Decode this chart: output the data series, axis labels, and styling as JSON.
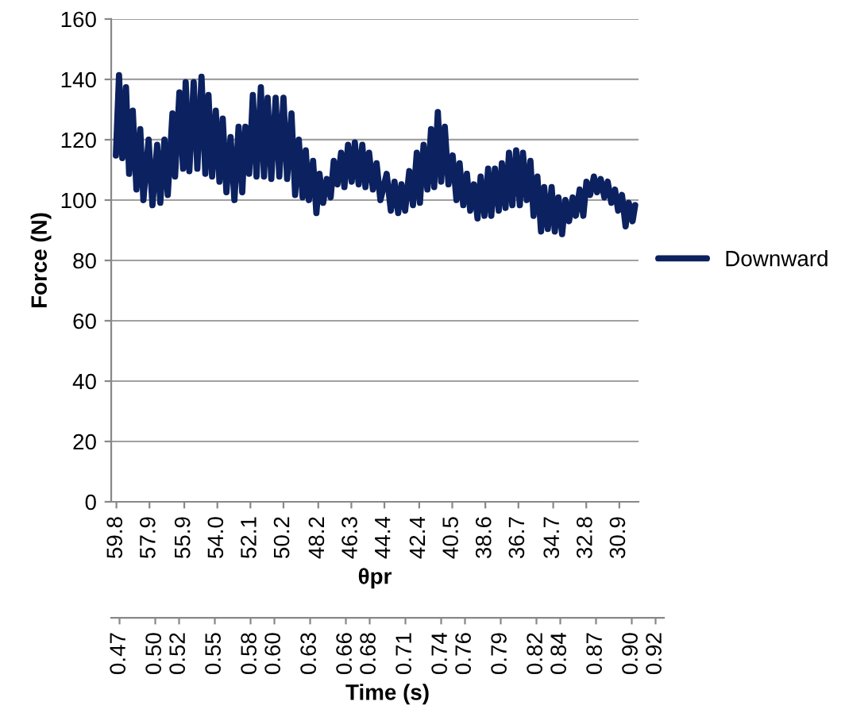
{
  "chart_data": {
    "type": "line",
    "xlabel": "θpr",
    "ylabel": "Force (N)",
    "x2label": "Time (s)",
    "xlim": [
      60.1,
      29.8
    ],
    "xticks": [
      59.8,
      57.9,
      55.9,
      {
        "value": 54.0,
        "label": "54.0"
      },
      52.1,
      50.2,
      48.2,
      46.3,
      44.4,
      42.4,
      40.5,
      38.6,
      36.7,
      34.7,
      32.8,
      30.9
    ],
    "x2lim": [
      0.463,
      0.927
    ],
    "x2ticks": [
      0.47,
      {
        "value": 0.5,
        "label": "0.50"
      },
      0.52,
      0.55,
      0.58,
      {
        "value": 0.6,
        "label": "0.60"
      },
      0.63,
      0.66,
      0.68,
      0.71,
      0.74,
      0.76,
      0.79,
      0.82,
      0.84,
      0.87,
      {
        "value": 0.9,
        "label": "0.90"
      },
      0.92
    ],
    "ylim": [
      0,
      160
    ],
    "yticks": [
      0,
      20,
      40,
      60,
      80,
      100,
      120,
      140,
      160
    ],
    "grid": "y",
    "legend": "right",
    "marker": "none",
    "line_style": "solid",
    "series": [
      {
        "name": "Downward",
        "color": "#0b2160",
        "x": [
          59.83,
          59.65,
          59.46,
          59.25,
          59.07,
          58.86,
          58.65,
          58.43,
          58.25,
          57.95,
          57.73,
          57.46,
          57.28,
          57.04,
          56.85,
          56.58,
          56.43,
          56.18,
          55.97,
          55.82,
          55.61,
          55.36,
          55.15,
          54.91,
          54.69,
          54.51,
          54.3,
          54.09,
          53.88,
          53.69,
          53.48,
          53.24,
          53.02,
          52.78,
          52.57,
          52.39,
          52.17,
          51.96,
          51.75,
          51.5,
          51.32,
          51.11,
          50.9,
          50.65,
          50.44,
          50.2,
          49.99,
          49.74,
          49.53,
          49.32,
          49.1,
          48.92,
          48.74,
          48.5,
          48.31,
          48.13,
          47.92,
          47.71,
          47.49,
          47.31,
          47.1,
          46.89,
          46.7,
          46.49,
          46.28,
          46.1,
          45.88,
          45.67,
          45.49,
          45.28,
          45.06,
          44.85,
          44.63,
          44.27,
          44.03,
          43.82,
          43.61,
          43.42,
          43.21,
          42.97,
          42.76,
          42.54,
          42.36,
          42.15,
          41.93,
          41.72,
          41.54,
          41.33,
          41.14,
          40.93,
          40.72,
          40.48,
          40.26,
          40.08,
          39.87,
          39.66,
          39.47,
          39.26,
          39.05,
          38.87,
          38.65,
          38.44,
          38.26,
          38.05,
          37.83,
          37.65,
          37.44,
          37.24,
          37.05,
          36.83,
          36.62,
          36.44,
          36.22,
          36.01,
          35.83,
          35.61,
          35.4,
          35.22,
          35.01,
          34.79,
          34.61,
          34.4,
          34.19,
          34.0,
          33.79,
          33.58,
          33.4,
          33.18,
          32.97,
          32.79,
          32.58,
          32.36,
          32.18,
          31.97,
          31.76,
          31.57,
          31.36,
          31.15,
          30.97,
          30.75,
          30.54,
          30.36,
          30.14,
          29.99
        ],
        "values": [
          114.8,
          141.4,
          113.9,
          137.4,
          108.7,
          129.6,
          103.5,
          123.5,
          100.0,
          120.0,
          98.3,
          118.3,
          99.1,
          120.0,
          101.7,
          128.7,
          107.8,
          135.7,
          110.4,
          139.1,
          109.6,
          139.1,
          110.4,
          140.9,
          108.7,
          134.8,
          107.8,
          129.6,
          106.1,
          127.0,
          102.6,
          120.9,
          100.0,
          124.3,
          102.6,
          124.3,
          108.7,
          134.8,
          107.8,
          137.4,
          107.8,
          133.9,
          107.0,
          133.9,
          107.8,
          133.9,
          107.0,
          128.7,
          101.7,
          120.0,
          100.9,
          116.5,
          100.0,
          113.0,
          95.7,
          108.7,
          99.1,
          107.0,
          100.9,
          113.0,
          105.2,
          115.7,
          104.3,
          118.3,
          106.1,
          119.1,
          105.2,
          118.3,
          104.3,
          115.7,
          103.5,
          112.2,
          100.0,
          108.7,
          96.5,
          106.1,
          95.7,
          105.2,
          96.5,
          109.6,
          98.3,
          115.7,
          99.1,
          118.3,
          103.5,
          123.5,
          104.3,
          129.2,
          106.1,
          124.3,
          105.2,
          114.8,
          100.0,
          112.2,
          98.3,
          108.7,
          96.5,
          105.2,
          93.9,
          107.8,
          94.8,
          110.4,
          94.8,
          110.4,
          96.5,
          112.2,
          97.4,
          115.7,
          98.3,
          116.5,
          98.3,
          115.7,
          100.0,
          113.0,
          94.8,
          107.8,
          89.6,
          104.3,
          90.4,
          104.3,
          89.6,
          100.9,
          88.7,
          100.0,
          93.0,
          100.9,
          94.8,
          103.5,
          94.8,
          106.1,
          101.7,
          107.8,
          102.6,
          107.0,
          100.9,
          106.1,
          99.1,
          103.5,
          96.5,
          101.7,
          91.3,
          99.1,
          93.0,
          98.3
        ]
      }
    ]
  }
}
